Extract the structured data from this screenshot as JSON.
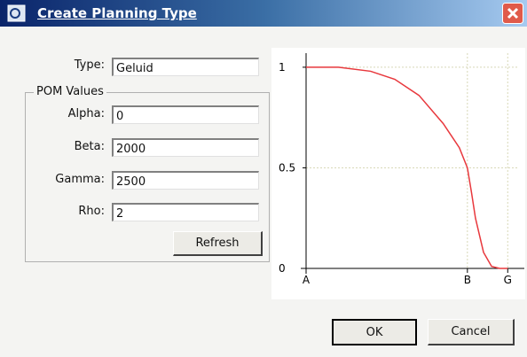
{
  "window": {
    "title": "Create Planning Type"
  },
  "form": {
    "type_label": "Type:",
    "type_value": "Geluid",
    "group_label": "POM Values",
    "fields": [
      {
        "label": "Alpha:",
        "value": "0"
      },
      {
        "label": "Beta:",
        "value": "2000"
      },
      {
        "label": "Gamma:",
        "value": "2500"
      },
      {
        "label": "Rho:",
        "value": "2"
      }
    ],
    "refresh": "Refresh"
  },
  "buttons": {
    "ok": "OK",
    "cancel": "Cancel"
  },
  "chart_data": {
    "type": "line",
    "x": [
      0,
      400,
      800,
      1100,
      1400,
      1700,
      1900,
      2000,
      2050,
      2100,
      2200,
      2300,
      2400,
      2500
    ],
    "series": [
      {
        "color": "#e8383d",
        "values": [
          1,
          1,
          0.98,
          0.94,
          0.86,
          0.72,
          0.6,
          0.5,
          0.38,
          0.25,
          0.08,
          0.01,
          0,
          0
        ]
      }
    ],
    "xlim": [
      0,
      2640
    ],
    "ylim": [
      0,
      1.07
    ],
    "xticks": [
      {
        "value": 0,
        "label": "A"
      },
      {
        "value": 2000,
        "label": "B"
      },
      {
        "value": 2500,
        "label": "G"
      }
    ],
    "yticks": [
      0,
      0.5,
      1
    ],
    "grid": true
  }
}
